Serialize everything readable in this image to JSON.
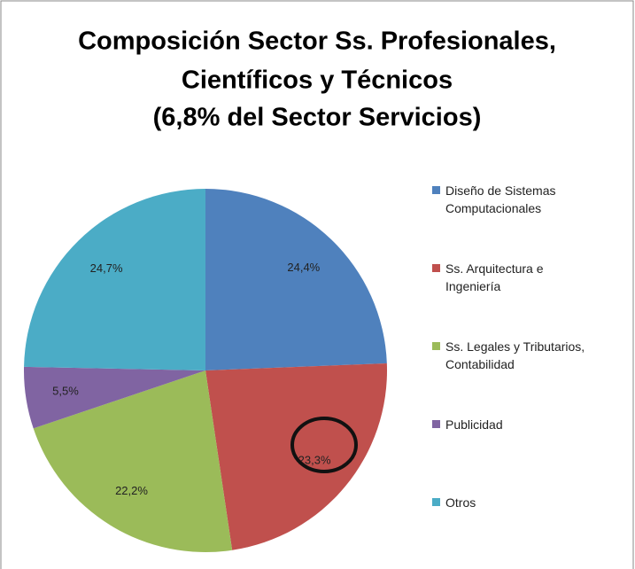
{
  "chart_data": {
    "type": "pie",
    "title": [
      "Composición Sector Ss. Profesionales,",
      "Científicos y Técnicos",
      "(6,8% del Sector Servicios)"
    ],
    "categories": [
      "Diseño de Sistemas Computacionales",
      "Ss. Arquitectura e Ingeniería",
      "Ss. Legales y Tributarios, Contabilidad",
      "Publicidad",
      "Otros"
    ],
    "values": [
      24.4,
      23.3,
      22.2,
      5.5,
      24.7
    ],
    "value_labels": [
      "24,4%",
      "23,3%",
      "22,2%",
      "5,5%",
      "24,7%"
    ],
    "colors": [
      "#4f81bd",
      "#c0504d",
      "#9bbb59",
      "#8064a2",
      "#4bacc6"
    ],
    "legend": "right"
  }
}
